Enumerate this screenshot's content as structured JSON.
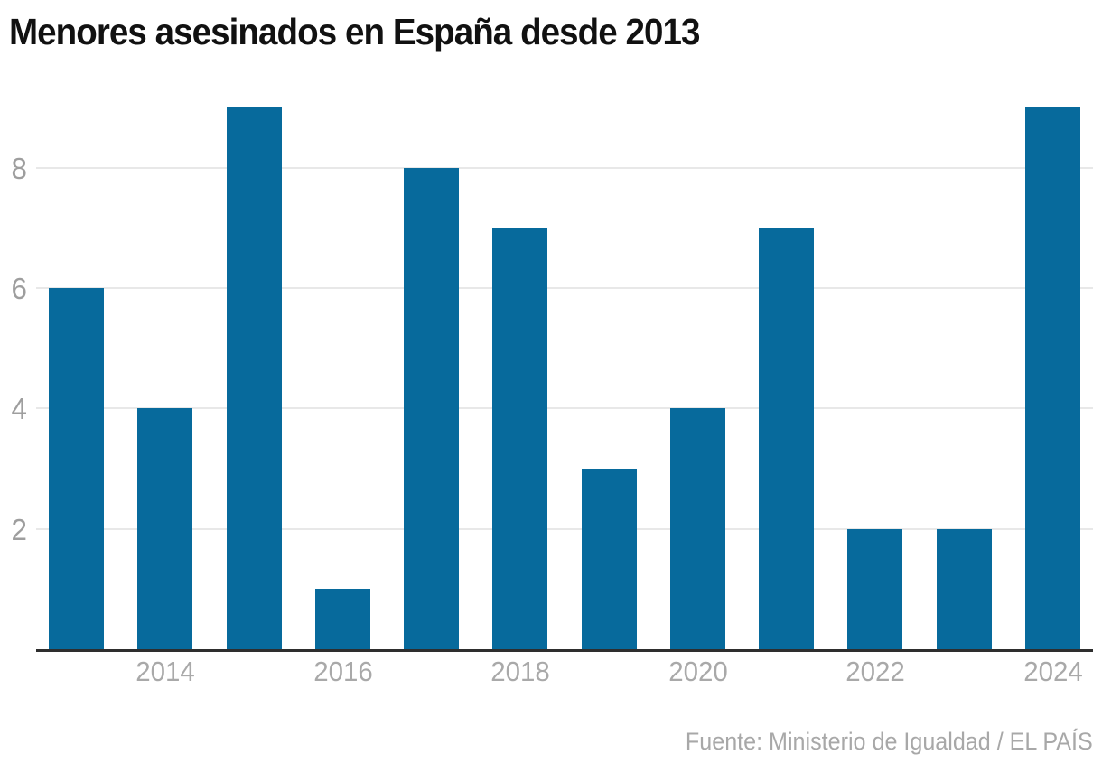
{
  "page": {
    "title": "Menores asesinados en España desde 2013",
    "source": "Fuente: Ministerio de Igualdad / EL PAÍS"
  },
  "colors": {
    "bar": "#076a9c",
    "gridline": "#e8e8e8",
    "axis_line": "#2e2e2e",
    "y_tick_label": "#9e9e9e",
    "x_tick_label": "#a9a9a9",
    "title": "#111111",
    "source": "#a8a8a8"
  },
  "chart_data": {
    "type": "bar",
    "title": "Menores asesinados en España desde 2013",
    "categories": [
      2013,
      2014,
      2015,
      2016,
      2017,
      2018,
      2019,
      2020,
      2021,
      2022,
      2023,
      2024
    ],
    "values": [
      6,
      4,
      9,
      1,
      8,
      7,
      3,
      4,
      7,
      2,
      2,
      9
    ],
    "series_name": "Menores asesinados",
    "x_tick_labels": [
      "2014",
      "2016",
      "2018",
      "2020",
      "2022",
      "2024"
    ],
    "y_ticks": [
      2,
      4,
      6,
      8
    ],
    "ylim": [
      0,
      9.3
    ],
    "xlabel": "",
    "ylabel": "",
    "grid": "horizontal",
    "legend": "none",
    "source": "Fuente: Ministerio de Igualdad / EL PAÍS"
  }
}
